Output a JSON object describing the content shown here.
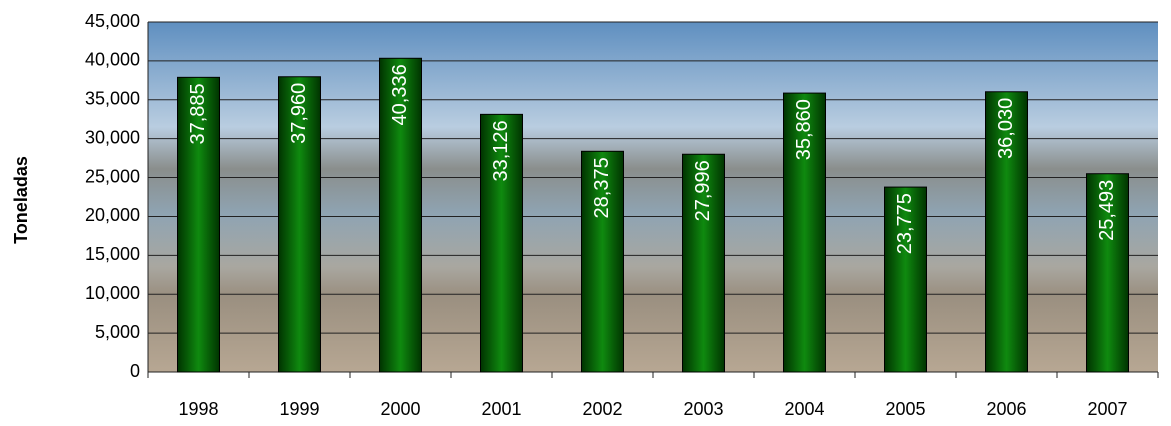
{
  "chart_data": {
    "type": "bar",
    "y_label": "Toneladas",
    "categories": [
      "1998",
      "1999",
      "2000",
      "2001",
      "2002",
      "2003",
      "2004",
      "2005",
      "2006",
      "2007"
    ],
    "values": [
      37885,
      37960,
      40336,
      33126,
      28375,
      27996,
      35860,
      23775,
      36030,
      25493
    ],
    "value_labels": [
      "37,885",
      "37,960",
      "40,336",
      "33,126",
      "28,375",
      "27,996",
      "35,860",
      "23,775",
      "36,030",
      "25,493"
    ],
    "color": "#0b6b0b",
    "ylim": [
      0,
      45000
    ],
    "yticks": [
      0,
      {
        "value": 5000,
        "label": "5,000"
      },
      {
        "value": 10000,
        "label": "10,000"
      },
      {
        "value": 15000,
        "label": "15,000"
      },
      {
        "value": 20000,
        "label": "20,000"
      },
      {
        "value": 25000,
        "label": "25,000"
      },
      {
        "value": 30000,
        "label": "30,000"
      },
      {
        "value": 35000,
        "label": "35,000"
      },
      {
        "value": 40000,
        "label": "40,000"
      },
      {
        "value": 45000,
        "label": "45,000"
      }
    ],
    "grid": true
  }
}
